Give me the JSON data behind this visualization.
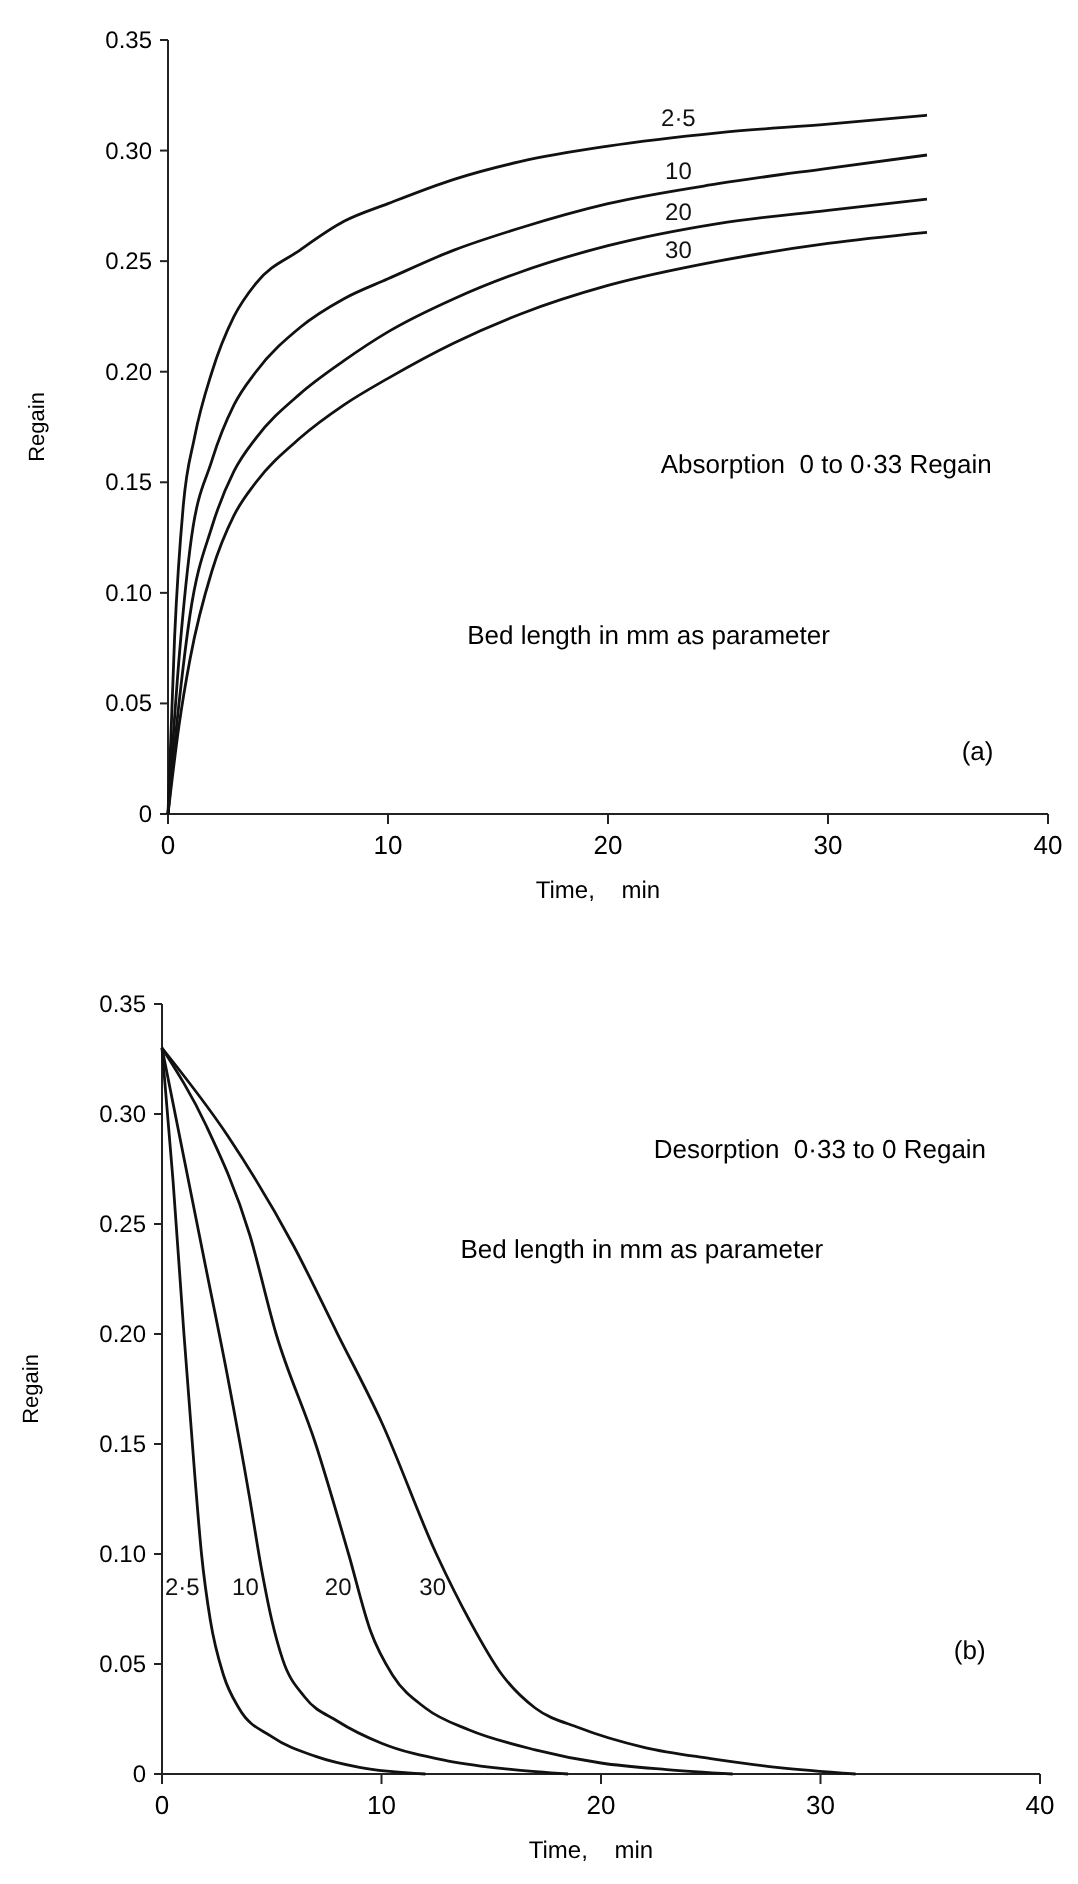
{
  "chart_data": [
    {
      "type": "line",
      "xlabel": "Time,    min",
      "ylabel": "Regain",
      "xlim": [
        0,
        40
      ],
      "ylim": [
        0,
        0.35
      ],
      "xticks": [
        0,
        10,
        20,
        30,
        40
      ],
      "yticks": [
        0,
        0.05,
        {
          "value": 0.1,
          "label": "0.10"
        },
        0.15,
        {
          "value": 0.2,
          "label": "0.20"
        },
        0.25,
        {
          "value": 0.3,
          "label": "0.30"
        },
        0.35
      ],
      "grid": false,
      "line_style": "solid",
      "annotations": [
        "Absorption  0 to 0·33 Regain",
        "Bed length in mm as parameter",
        "(a)"
      ],
      "series": [
        {
          "name": "2·5",
          "color": "#111111",
          "x": [
            0,
            0.3,
            0.7,
            1.2,
            2,
            3,
            4,
            6,
            8,
            10,
            13,
            16,
            20,
            25,
            30,
            34.5
          ],
          "values": [
            0,
            0.08,
            0.14,
            0.17,
            0.2,
            0.225,
            0.24,
            0.255,
            0.268,
            0.276,
            0.287,
            0.295,
            0.302,
            0.308,
            0.312,
            0.316
          ]
        },
        {
          "name": "10",
          "color": "#111111",
          "x": [
            0,
            0.5,
            1,
            2,
            3,
            4,
            6,
            8,
            10,
            13,
            16,
            20,
            25,
            30,
            34.5
          ],
          "values": [
            0,
            0.07,
            0.12,
            0.16,
            0.185,
            0.2,
            0.22,
            0.233,
            0.242,
            0.255,
            0.265,
            0.276,
            0.285,
            0.292,
            0.298
          ]
        },
        {
          "name": "20",
          "color": "#111111",
          "x": [
            0,
            0.5,
            1,
            2,
            3,
            4,
            6,
            8,
            10,
            13,
            16,
            20,
            25,
            30,
            34.5
          ],
          "values": [
            0,
            0.05,
            0.09,
            0.13,
            0.155,
            0.17,
            0.19,
            0.205,
            0.218,
            0.233,
            0.245,
            0.257,
            0.267,
            0.273,
            0.278
          ]
        },
        {
          "name": "30",
          "color": "#111111",
          "x": [
            0,
            0.5,
            1,
            2,
            3,
            4,
            6,
            8,
            10,
            13,
            16,
            20,
            25,
            30,
            34.5
          ],
          "values": [
            0,
            0.04,
            0.07,
            0.11,
            0.135,
            0.15,
            0.17,
            0.185,
            0.197,
            0.213,
            0.226,
            0.239,
            0.25,
            0.258,
            0.263
          ]
        }
      ]
    },
    {
      "type": "line",
      "xlabel": "Time,    min",
      "ylabel": "Regain",
      "xlim": [
        0,
        40
      ],
      "ylim": [
        0,
        0.35
      ],
      "xticks": [
        0,
        10,
        20,
        30,
        40
      ],
      "yticks": [
        0,
        0.05,
        {
          "value": 0.1,
          "label": "0.10"
        },
        0.15,
        {
          "value": 0.2,
          "label": "0.20"
        },
        0.25,
        {
          "value": 0.3,
          "label": "0.30"
        },
        0.35
      ],
      "grid": false,
      "line_style": "solid",
      "annotations": [
        "Desorption  0·33 to 0 Regain",
        "Bed length in mm as parameter",
        "(b)"
      ],
      "series": [
        {
          "name": "2·5",
          "color": "#111111",
          "x": [
            0,
            0.5,
            1,
            1.5,
            1.8,
            2.2,
            2.8,
            3.5,
            5,
            7,
            9,
            12
          ],
          "values": [
            0.33,
            0.27,
            0.2,
            0.135,
            0.1,
            0.07,
            0.045,
            0.03,
            0.017,
            0.008,
            0.003,
            0
          ]
        },
        {
          "name": "10",
          "color": "#111111",
          "x": [
            0,
            1,
            2,
            3,
            4,
            4.5,
            5,
            5.5,
            6.5,
            8,
            10,
            13,
            16,
            18.5
          ],
          "values": [
            0.33,
            0.28,
            0.23,
            0.18,
            0.125,
            0.095,
            0.07,
            0.052,
            0.035,
            0.024,
            0.014,
            0.006,
            0.002,
            0
          ]
        },
        {
          "name": "20",
          "color": "#111111",
          "x": [
            0,
            2,
            4,
            5.2,
            7,
            8.5,
            9.5,
            10.5,
            12,
            14,
            17,
            20,
            23,
            26
          ],
          "values": [
            0.33,
            0.295,
            0.245,
            0.2,
            0.15,
            0.1,
            0.065,
            0.045,
            0.03,
            0.02,
            0.011,
            0.005,
            0.002,
            0
          ]
        },
        {
          "name": "30",
          "color": "#111111",
          "x": [
            0,
            3,
            6,
            8,
            10,
            12.5,
            14,
            15.5,
            17,
            19,
            22,
            25,
            28,
            31.6
          ],
          "values": [
            0.33,
            0.29,
            0.24,
            0.2,
            0.16,
            0.1,
            0.07,
            0.045,
            0.03,
            0.021,
            0.012,
            0.007,
            0.003,
            0
          ]
        }
      ]
    }
  ]
}
